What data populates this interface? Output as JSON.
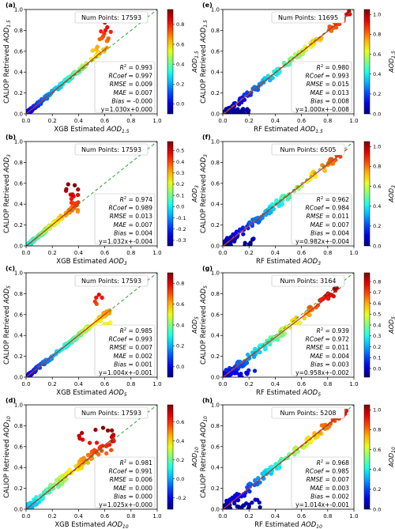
{
  "colors": {
    "one_to_one": "#2ca02c",
    "fit_line": "#d62728",
    "colormap": "jet"
  },
  "chart_data": [
    {
      "type": "scatter",
      "label": "(a)",
      "num_points": "Num Points: 17593",
      "xlabel": "XGB Estimated",
      "aod": "1.5",
      "ylabel": "CALIOP Retrieved",
      "xlim": [
        0,
        1
      ],
      "ylim": [
        0,
        1
      ],
      "xticks": [
        "0.0",
        "0.2",
        "0.4",
        "0.6",
        "0.8",
        "1.0"
      ],
      "yticks": [
        "0.0",
        "0.2",
        "0.4",
        "0.6",
        "0.8",
        "1.0"
      ],
      "colorbar_ticks": [
        "0.0",
        "0.2",
        "0.4",
        "0.6",
        "0.8"
      ],
      "clim": [
        -0.1,
        0.95
      ],
      "stats": {
        "r2": "= 0.993",
        "rcoef": "= 0.997",
        "rmse": "= 0.009",
        "mae": "= 0.007",
        "bias": "= -0.000",
        "fit": "y=1.030x+0.000"
      },
      "fit": {
        "slope": 1.03,
        "intercept": 0.0
      },
      "points": {
        "xmax": 0.62,
        "spread": 0.02,
        "outlier_x": [
          0.5,
          0.65
        ],
        "outlier_y": [
          0.55,
          0.9
        ]
      }
    },
    {
      "type": "scatter",
      "label": "(e)",
      "num_points": "Num Points: 11695",
      "xlabel": "RF Estimated",
      "aod": "1.5",
      "ylabel": "CALIOP Retrieved",
      "xlim": [
        0,
        1
      ],
      "ylim": [
        0,
        1
      ],
      "xticks": [
        "0.0",
        "0.2",
        "0.4",
        "0.6",
        "0.8",
        "1.0"
      ],
      "yticks": [
        "0.0",
        "0.2",
        "0.4",
        "0.6",
        "0.8",
        "1.0"
      ],
      "colorbar_ticks": [
        "0.0",
        "0.2",
        "0.4",
        "0.6",
        "0.8",
        "1.0"
      ],
      "clim": [
        0,
        1.05
      ],
      "stats": {
        "r2": "= 0.980",
        "rcoef": "= 0.993",
        "rmse": "= 0.015",
        "mae": "= 0.013",
        "bias": "= 0.008",
        "fit": "y=1.000x+-0.008"
      },
      "fit": {
        "slope": 1.0,
        "intercept": -0.008
      },
      "points": {
        "xmax": 0.98,
        "spread": 0.03,
        "outlier_x": [
          0.05,
          0.2
        ],
        "outlier_y": [
          0.0,
          0.05
        ]
      }
    },
    {
      "type": "scatter",
      "label": "(b)",
      "num_points": "Num Points: 17593",
      "xlabel": "XGB Estimated",
      "aod": "3",
      "ylabel": "CALIOP Retrieved",
      "xlim": [
        0,
        1
      ],
      "ylim": [
        0,
        1
      ],
      "xticks": [
        "0.0",
        "0.2",
        "0.4",
        "0.6",
        "0.8",
        "1.0"
      ],
      "yticks": [
        "0.0",
        "0.2",
        "0.4",
        "0.6",
        "0.8",
        "1.0"
      ],
      "colorbar_ticks": [
        "-0.3",
        "-0.2",
        "-0.1",
        "0.0",
        "0.1",
        "0.2",
        "0.3",
        "0.4",
        "0.5"
      ],
      "clim": [
        -0.35,
        0.58
      ],
      "stats": {
        "r2": "= 0.974",
        "rcoef": "= 0.989",
        "rmse": "= 0.013",
        "mae": "= 0.007",
        "bias": "= 0.004",
        "fit": "y=1.032x+-0.004"
      },
      "fit": {
        "slope": 1.032,
        "intercept": -0.004
      },
      "points": {
        "xmax": 0.4,
        "spread": 0.02,
        "outlier_x": [
          0.3,
          0.4
        ],
        "outlier_y": [
          0.3,
          0.6
        ]
      }
    },
    {
      "type": "scatter",
      "label": "(f)",
      "num_points": "Num Points: 6505",
      "xlabel": "RF Estimated",
      "aod": "3",
      "ylabel": "CALIOP Retrieved",
      "xlim": [
        0,
        1
      ],
      "ylim": [
        0,
        1
      ],
      "xticks": [
        "0.0",
        "0.2",
        "0.4",
        "0.6",
        "0.8",
        "1.0"
      ],
      "yticks": [
        "0.0",
        "0.2",
        "0.4",
        "0.6",
        "0.8",
        "1.0"
      ],
      "colorbar_ticks": [
        "0.0",
        "0.2",
        "0.4",
        "0.6",
        "0.8",
        "1.0"
      ],
      "clim": [
        0,
        1.05
      ],
      "stats": {
        "r2": "= 0.962",
        "rcoef": "= 0.984",
        "rmse": "= 0.011",
        "mae": "= 0.007",
        "bias": "= 0.004",
        "fit": "y=0.982x+-0.004"
      },
      "fit": {
        "slope": 0.982,
        "intercept": -0.004
      },
      "points": {
        "xmax": 0.95,
        "spread": 0.04,
        "outlier_x": [
          0.02,
          0.25
        ],
        "outlier_y": [
          0.0,
          0.08
        ]
      }
    },
    {
      "type": "scatter",
      "label": "(c)",
      "num_points": "Num Points: 17593",
      "xlabel": "XGB Estimated",
      "aod": "5",
      "ylabel": "CALIOP Retrieved",
      "xlim": [
        0,
        1
      ],
      "ylim": [
        0,
        1
      ],
      "xticks": [
        "0.0",
        "0.2",
        "0.4",
        "0.6",
        "0.8",
        "1.0"
      ],
      "yticks": [
        "0.0",
        "0.2",
        "0.4",
        "0.6",
        "0.8",
        "1.0"
      ],
      "colorbar_ticks": [
        "0.0",
        "0.2",
        "0.4",
        "0.6",
        "0.8"
      ],
      "clim": [
        -0.1,
        0.9
      ],
      "stats": {
        "r2": "= 0.985",
        "rcoef": "= 0.993",
        "rmse": "= 0.007",
        "mae": "= 0.002",
        "bias": "= 0.001",
        "fit": "y=1.004x+-0.001"
      },
      "fit": {
        "slope": 1.004,
        "intercept": -0.001
      },
      "points": {
        "xmax": 0.62,
        "spread": 0.02,
        "outlier_x": [
          0.52,
          0.65
        ],
        "outlier_y": [
          0.5,
          0.8
        ]
      }
    },
    {
      "type": "scatter",
      "label": "(g)",
      "num_points": "Num Points: 3164",
      "xlabel": "RF Estimated",
      "aod": "5",
      "ylabel": "CALIOP Retrieved",
      "xlim": [
        0,
        1
      ],
      "ylim": [
        0,
        1
      ],
      "xticks": [
        "0.0",
        "0.2",
        "0.4",
        "0.6",
        "0.8",
        "1.0"
      ],
      "yticks": [
        "0.0",
        "0.2",
        "0.4",
        "0.6",
        "0.8",
        "1.0"
      ],
      "colorbar_ticks": [
        "0.0",
        "0.1",
        "0.2",
        "0.3",
        "0.4",
        "0.5",
        "0.6",
        "0.7",
        "0.8"
      ],
      "clim": [
        -0.08,
        0.88
      ],
      "stats": {
        "r2": "= 0.939",
        "rcoef": "= 0.972",
        "rmse": "= 0.011",
        "mae": "= 0.004",
        "bias": "= 0.003",
        "fit": "y=0.958x+-0.002"
      },
      "fit": {
        "slope": 0.958,
        "intercept": -0.002
      },
      "points": {
        "xmax": 0.9,
        "spread": 0.04,
        "outlier_x": [
          0.02,
          0.25
        ],
        "outlier_y": [
          0.0,
          0.08
        ]
      }
    },
    {
      "type": "scatter",
      "label": "(d)",
      "num_points": "Num Points: 17593",
      "xlabel": "XGB Estimated",
      "aod": "10",
      "ylabel": "CALIOP Retrieved",
      "xlim": [
        0,
        1
      ],
      "ylim": [
        0,
        1
      ],
      "xticks": [
        "0.0",
        "0.2",
        "0.4",
        "0.6",
        "0.8",
        "1.0"
      ],
      "yticks": [
        "0.0",
        "0.2",
        "0.4",
        "0.6",
        "0.8",
        "1.0"
      ],
      "colorbar_ticks": [
        "-0.2",
        "0.0",
        "0.2",
        "0.4",
        "0.6"
      ],
      "clim": [
        -0.32,
        0.78
      ],
      "stats": {
        "r2": "= 0.981",
        "rcoef": "= 0.991",
        "rmse": "= 0.006",
        "mae": "= 0.000",
        "bias": "= 0.000",
        "fit": "y=1.025x+-0.000"
      },
      "fit": {
        "slope": 1.025,
        "intercept": 0.0
      },
      "points": {
        "xmax": 0.68,
        "spread": 0.04,
        "outlier_x": [
          0.4,
          0.68
        ],
        "outlier_y": [
          0.4,
          0.78
        ]
      }
    },
    {
      "type": "scatter",
      "label": "(h)",
      "num_points": "Num Points: 5208",
      "xlabel": "RF Estimated",
      "aod": "10",
      "ylabel": "CALIOP Retrieved",
      "xlim": [
        0,
        1
      ],
      "ylim": [
        0,
        1
      ],
      "xticks": [
        "0.0",
        "0.2",
        "0.4",
        "0.6",
        "0.8",
        "1.0"
      ],
      "yticks": [
        "0.0",
        "0.2",
        "0.4",
        "0.6",
        "0.8",
        "1.0"
      ],
      "colorbar_ticks": [
        "0.0",
        "0.2",
        "0.4",
        "0.6",
        "0.8",
        "1.0"
      ],
      "clim": [
        0,
        1.05
      ],
      "stats": {
        "r2": "= 0.968",
        "rcoef": "= 0.985",
        "rmse": "= 0.007",
        "mae": "= 0.003",
        "bias": "= 0.002",
        "fit": "y=1.014x+-0.001"
      },
      "fit": {
        "slope": 1.014,
        "intercept": -0.001
      },
      "points": {
        "xmax": 0.95,
        "spread": 0.04,
        "outlier_x": [
          0.02,
          0.3
        ],
        "outlier_y": [
          0.0,
          0.1
        ]
      }
    }
  ]
}
